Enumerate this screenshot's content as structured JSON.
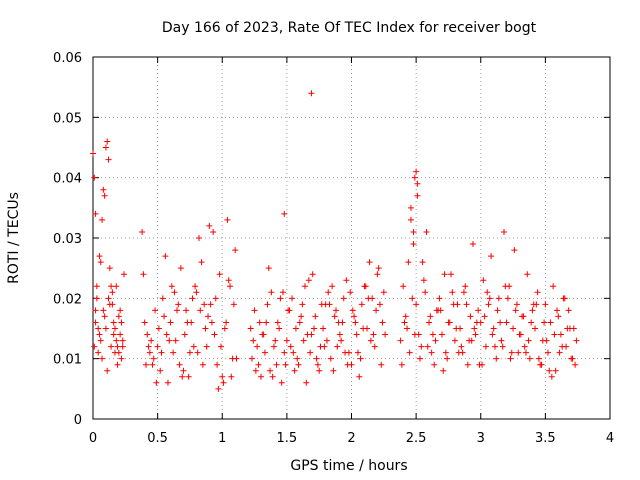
{
  "chart_data": {
    "type": "scatter",
    "title": "Day 166 of 2023, Rate Of TEC Index for receiver bogt",
    "xlabel": "GPS time / hours",
    "ylabel": "ROTI / TECUs",
    "xlim": [
      0,
      4
    ],
    "ylim": [
      0,
      0.06
    ],
    "x_ticks": [
      0,
      0.5,
      1,
      1.5,
      2,
      2.5,
      3,
      3.5,
      4
    ],
    "y_ticks": [
      0,
      0.01,
      0.02,
      0.03,
      0.04,
      0.05,
      0.06
    ],
    "x_tick_labels": [
      "0",
      "0.5",
      "1",
      "1.5",
      "2",
      "2.5",
      "3",
      "3.5",
      "4"
    ],
    "y_tick_labels": [
      "0",
      "0.01",
      "0.02",
      "0.03",
      "0.04",
      "0.05",
      "0.06"
    ],
    "grid": true,
    "marker": "+",
    "color": "#ff0000",
    "series": [
      {
        "name": "ROTI",
        "x": [
          0.0,
          0.01,
          0.02,
          0.02,
          0.03,
          0.04,
          0.05,
          0.06,
          0.07,
          0.08,
          0.09,
          0.1,
          0.11,
          0.12,
          0.13,
          0.14,
          0.15,
          0.16,
          0.17,
          0.18,
          0.19,
          0.2,
          0.21,
          0.22,
          0.23,
          0.24,
          0.01,
          0.03,
          0.05,
          0.07,
          0.09,
          0.11,
          0.13,
          0.15,
          0.17,
          0.19,
          0.21,
          0.23,
          0.02,
          0.04,
          0.06,
          0.08,
          0.1,
          0.12,
          0.14,
          0.16,
          0.18,
          0.2,
          0.22,
          0.38,
          0.4,
          0.42,
          0.44,
          0.46,
          0.48,
          0.5,
          0.52,
          0.54,
          0.56,
          0.58,
          0.6,
          0.62,
          0.64,
          0.66,
          0.68,
          0.7,
          0.72,
          0.74,
          0.76,
          0.78,
          0.8,
          0.82,
          0.84,
          0.86,
          0.88,
          0.9,
          0.92,
          0.94,
          0.96,
          0.98,
          1.0,
          1.02,
          1.04,
          1.06,
          1.08,
          1.1,
          0.39,
          0.43,
          0.47,
          0.51,
          0.55,
          0.59,
          0.63,
          0.67,
          0.71,
          0.75,
          0.79,
          0.83,
          0.87,
          0.91,
          0.95,
          0.99,
          1.03,
          1.07,
          1.11,
          0.41,
          0.45,
          0.49,
          0.53,
          0.57,
          0.61,
          0.65,
          0.69,
          0.73,
          0.77,
          0.81,
          0.85,
          0.89,
          0.93,
          0.97,
          1.01,
          1.05,
          1.09,
          1.22,
          1.24,
          1.26,
          1.28,
          1.3,
          1.32,
          1.34,
          1.36,
          1.38,
          1.4,
          1.42,
          1.44,
          1.46,
          1.48,
          1.5,
          1.52,
          1.54,
          1.56,
          1.58,
          1.6,
          1.62,
          1.64,
          1.66,
          1.68,
          1.7,
          1.72,
          1.74,
          1.76,
          1.78,
          1.8,
          1.82,
          1.84,
          1.86,
          1.88,
          1.9,
          1.92,
          1.94,
          1.96,
          1.98,
          2.0,
          2.02,
          2.04,
          2.06,
          2.08,
          2.1,
          2.12,
          2.14,
          2.16,
          2.18,
          2.2,
          2.22,
          2.24,
          2.26,
          1.23,
          1.27,
          1.31,
          1.35,
          1.39,
          1.43,
          1.47,
          1.51,
          1.55,
          1.59,
          1.63,
          1.67,
          1.71,
          1.75,
          1.79,
          1.83,
          1.87,
          1.91,
          1.95,
          1.99,
          2.03,
          2.07,
          2.11,
          2.15,
          2.19,
          2.23,
          1.25,
          1.29,
          1.33,
          1.37,
          1.41,
          1.45,
          1.49,
          1.53,
          1.57,
          1.61,
          1.65,
          1.69,
          1.73,
          1.77,
          1.81,
          1.85,
          1.89,
          1.93,
          1.97,
          2.01,
          2.05,
          2.09,
          2.13,
          2.17,
          2.21,
          2.25,
          1.48,
          1.69,
          2.38,
          2.4,
          2.42,
          2.44,
          2.46,
          2.48,
          2.5,
          2.52,
          2.54,
          2.56,
          2.58,
          2.6,
          2.62,
          2.64,
          2.66,
          2.68,
          2.7,
          2.72,
          2.74,
          2.76,
          2.78,
          2.8,
          2.82,
          2.84,
          2.86,
          2.88,
          2.9,
          2.92,
          2.94,
          2.96,
          2.98,
          3.0,
          3.02,
          3.04,
          3.06,
          3.08,
          3.1,
          3.12,
          3.14,
          3.16,
          3.18,
          3.2,
          3.22,
          3.24,
          3.26,
          3.28,
          3.3,
          3.32,
          3.34,
          3.36,
          3.38,
          3.4,
          3.42,
          3.44,
          3.46,
          3.48,
          3.5,
          3.52,
          3.54,
          3.56,
          3.58,
          3.6,
          3.62,
          3.64,
          3.66,
          3.68,
          3.7,
          3.72,
          3.74,
          2.39,
          2.43,
          2.47,
          2.51,
          2.55,
          2.59,
          2.63,
          2.67,
          2.71,
          2.75,
          2.79,
          2.83,
          2.87,
          2.91,
          2.95,
          2.99,
          3.03,
          3.07,
          3.11,
          3.15,
          3.19,
          3.23,
          3.27,
          3.31,
          3.35,
          3.39,
          3.43,
          3.47,
          3.51,
          3.55,
          3.59,
          3.63,
          3.67,
          3.71,
          2.41,
          2.45,
          2.49,
          2.53,
          2.57,
          2.61,
          2.65,
          2.69,
          2.73,
          2.77,
          2.81,
          2.85,
          2.89,
          2.93,
          2.97,
          3.01,
          3.05,
          3.09,
          3.13,
          3.17,
          3.21,
          3.25,
          3.29,
          3.33,
          3.37,
          3.41,
          3.45,
          3.49,
          3.53,
          3.57,
          3.61,
          3.65,
          3.69,
          3.73,
          2.49,
          2.5,
          2.51,
          2.46,
          2.48
        ],
        "y": [
          0.044,
          0.04,
          0.034,
          0.018,
          0.022,
          0.015,
          0.027,
          0.026,
          0.033,
          0.038,
          0.037,
          0.045,
          0.046,
          0.043,
          0.025,
          0.022,
          0.019,
          0.016,
          0.015,
          0.013,
          0.012,
          0.011,
          0.014,
          0.016,
          0.013,
          0.024,
          0.012,
          0.02,
          0.014,
          0.01,
          0.017,
          0.008,
          0.019,
          0.021,
          0.011,
          0.009,
          0.018,
          0.012,
          0.016,
          0.011,
          0.013,
          0.018,
          0.015,
          0.02,
          0.012,
          0.014,
          0.022,
          0.017,
          0.01,
          0.031,
          0.016,
          0.014,
          0.011,
          0.009,
          0.018,
          0.012,
          0.008,
          0.02,
          0.027,
          0.006,
          0.016,
          0.011,
          0.013,
          0.019,
          0.025,
          0.008,
          0.018,
          0.007,
          0.016,
          0.012,
          0.021,
          0.03,
          0.026,
          0.019,
          0.012,
          0.032,
          0.016,
          0.014,
          0.009,
          0.024,
          0.007,
          0.015,
          0.033,
          0.022,
          0.01,
          0.028,
          0.024,
          0.012,
          0.01,
          0.015,
          0.017,
          0.013,
          0.021,
          0.009,
          0.014,
          0.011,
          0.022,
          0.018,
          0.015,
          0.019,
          0.02,
          0.012,
          0.016,
          0.007,
          0.01,
          0.009,
          0.013,
          0.006,
          0.011,
          0.014,
          0.022,
          0.018,
          0.007,
          0.016,
          0.02,
          0.011,
          0.009,
          0.017,
          0.031,
          0.005,
          0.006,
          0.023,
          0.019,
          0.015,
          0.013,
          0.008,
          0.009,
          0.007,
          0.014,
          0.016,
          0.025,
          0.021,
          0.012,
          0.009,
          0.015,
          0.006,
          0.011,
          0.013,
          0.018,
          0.02,
          0.008,
          0.01,
          0.016,
          0.019,
          0.022,
          0.014,
          0.011,
          0.024,
          0.017,
          0.009,
          0.012,
          0.015,
          0.019,
          0.021,
          0.01,
          0.008,
          0.018,
          0.016,
          0.013,
          0.02,
          0.023,
          0.011,
          0.009,
          0.017,
          0.014,
          0.007,
          0.019,
          0.022,
          0.015,
          0.026,
          0.02,
          0.012,
          0.024,
          0.019,
          0.016,
          0.014,
          0.01,
          0.012,
          0.014,
          0.019,
          0.007,
          0.016,
          0.021,
          0.018,
          0.011,
          0.009,
          0.013,
          0.023,
          0.015,
          0.008,
          0.012,
          0.019,
          0.017,
          0.014,
          0.011,
          0.021,
          0.016,
          0.01,
          0.022,
          0.013,
          0.018,
          0.009,
          0.018,
          0.016,
          0.011,
          0.008,
          0.013,
          0.02,
          0.009,
          0.012,
          0.015,
          0.017,
          0.006,
          0.014,
          0.01,
          0.019,
          0.013,
          0.022,
          0.012,
          0.016,
          0.009,
          0.018,
          0.011,
          0.015,
          0.02,
          0.014,
          0.025,
          0.021,
          0.034,
          0.054,
          0.013,
          0.022,
          0.017,
          0.026,
          0.033,
          0.029,
          0.019,
          0.014,
          0.012,
          0.023,
          0.031,
          0.016,
          0.011,
          0.009,
          0.018,
          0.02,
          0.014,
          0.024,
          0.01,
          0.016,
          0.021,
          0.013,
          0.019,
          0.015,
          0.011,
          0.022,
          0.009,
          0.017,
          0.029,
          0.014,
          0.018,
          0.016,
          0.023,
          0.012,
          0.019,
          0.027,
          0.015,
          0.01,
          0.02,
          0.013,
          0.031,
          0.016,
          0.022,
          0.011,
          0.028,
          0.019,
          0.014,
          0.017,
          0.012,
          0.024,
          0.01,
          0.018,
          0.015,
          0.021,
          0.009,
          0.013,
          0.019,
          0.011,
          0.016,
          0.022,
          0.008,
          0.017,
          0.014,
          0.02,
          0.012,
          0.018,
          0.01,
          0.015,
          0.013,
          0.009,
          0.015,
          0.02,
          0.037,
          0.026,
          0.012,
          0.014,
          0.018,
          0.008,
          0.016,
          0.019,
          0.011,
          0.021,
          0.013,
          0.015,
          0.009,
          0.017,
          0.02,
          0.012,
          0.016,
          0.022,
          0.01,
          0.018,
          0.014,
          0.011,
          0.016,
          0.019,
          0.009,
          0.013,
          0.007,
          0.018,
          0.012,
          0.015,
          0.01,
          0.016,
          0.011,
          0.014,
          0.01,
          0.021,
          0.017,
          0.013,
          0.018,
          0.011,
          0.024,
          0.015,
          0.012,
          0.019,
          0.013,
          0.016,
          0.009,
          0.021,
          0.014,
          0.018,
          0.012,
          0.02,
          0.015,
          0.011,
          0.017,
          0.013,
          0.019,
          0.01,
          0.016,
          0.008,
          0.014,
          0.011,
          0.02,
          0.015,
          0.009,
          0.04,
          0.041,
          0.039,
          0.035,
          0.031
        ]
      }
    ]
  }
}
